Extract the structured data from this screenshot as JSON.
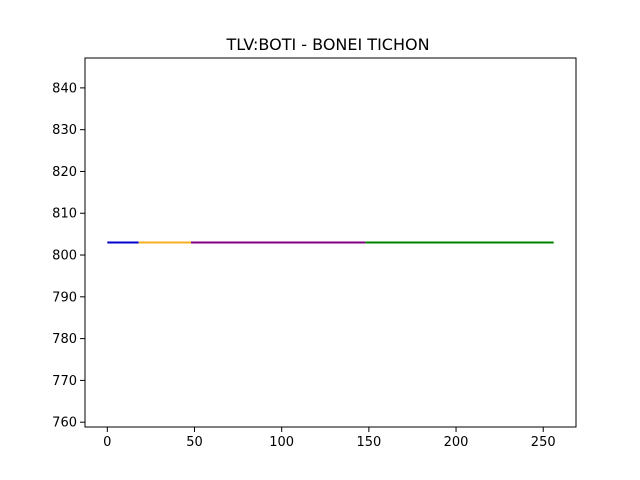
{
  "chart_data": {
    "type": "line",
    "title": "TLV:BOTI - BONEI TICHON",
    "xlabel": "",
    "ylabel": "",
    "xlim": [
      -12.8,
      268.8
    ],
    "ylim": [
      758.85,
      847.15
    ],
    "x_ticks": [
      0,
      50,
      100,
      150,
      200,
      250
    ],
    "y_ticks": [
      760,
      770,
      780,
      790,
      800,
      810,
      820,
      830,
      840
    ],
    "x_tick_labels": [
      "0",
      "50",
      "100",
      "150",
      "200",
      "250"
    ],
    "y_tick_labels": [
      "760",
      "770",
      "780",
      "790",
      "800",
      "810",
      "820",
      "830",
      "840"
    ],
    "grid": false,
    "legend": "none",
    "series": [
      {
        "color": "#0000cc",
        "x": [
          0,
          18
        ],
        "y": [
          803,
          803
        ]
      },
      {
        "color": "#f5b021",
        "x": [
          18,
          48
        ],
        "y": [
          803,
          803
        ]
      },
      {
        "color": "#800080",
        "x": [
          48,
          148
        ],
        "y": [
          803,
          803
        ]
      },
      {
        "color": "#008000",
        "x": [
          148,
          256
        ],
        "y": [
          803,
          803
        ]
      }
    ]
  }
}
